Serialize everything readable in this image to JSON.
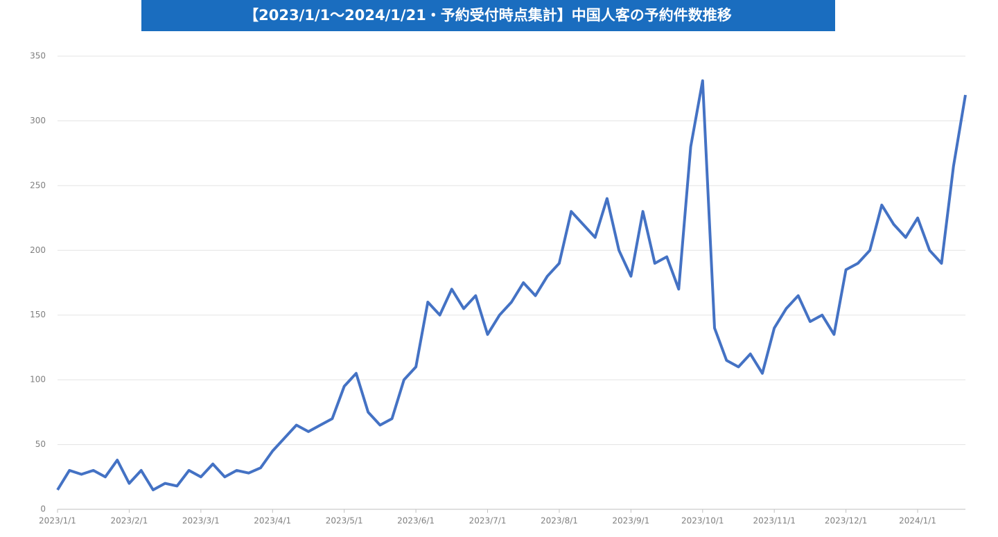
{
  "chart_data": {
    "type": "line",
    "title": "【2023/1/1～2024/1/21・予約受付時点集計】中国人客の予約件数推移",
    "categories": [
      "2023/1/1",
      null,
      null,
      null,
      null,
      null,
      "2023/2/1",
      null,
      null,
      null,
      null,
      null,
      "2023/3/1",
      null,
      null,
      null,
      null,
      null,
      "2023/4/1",
      null,
      null,
      null,
      null,
      null,
      "2023/5/1",
      null,
      null,
      null,
      null,
      null,
      "2023/6/1",
      null,
      null,
      null,
      null,
      null,
      "2023/7/1",
      null,
      null,
      null,
      null,
      null,
      "2023/8/1",
      null,
      null,
      null,
      null,
      null,
      "2023/9/1",
      null,
      null,
      null,
      null,
      null,
      "2023/10/1",
      null,
      null,
      null,
      null,
      null,
      "2023/11/1",
      null,
      null,
      null,
      null,
      null,
      "2023/12/1",
      null,
      null,
      null,
      null,
      null,
      "2024/1/1",
      null,
      null,
      null,
      null
    ],
    "series": [
      {
        "color": "#4472c4",
        "values": [
          15,
          30,
          27,
          30,
          25,
          38,
          20,
          30,
          15,
          20,
          18,
          30,
          25,
          35,
          25,
          30,
          28,
          32,
          45,
          55,
          65,
          60,
          65,
          70,
          95,
          105,
          75,
          65,
          70,
          100,
          110,
          160,
          150,
          170,
          155,
          165,
          135,
          150,
          160,
          175,
          165,
          180,
          190,
          230,
          220,
          210,
          240,
          200,
          180,
          230,
          190,
          195,
          170,
          280,
          331,
          140,
          115,
          110,
          120,
          105,
          140,
          155,
          165,
          145,
          150,
          135,
          185,
          190,
          200,
          235,
          220,
          210,
          225,
          200,
          190,
          265,
          320
        ]
      }
    ],
    "ylim": [
      0,
      350
    ],
    "yticks": [
      0,
      50,
      100,
      150,
      200,
      250,
      300,
      350
    ],
    "grid": true
  }
}
